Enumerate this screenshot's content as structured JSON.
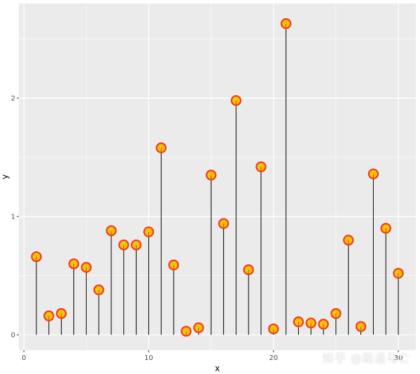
{
  "chart_data": {
    "type": "scatter",
    "style": "lollipop",
    "xlabel": "x",
    "ylabel": "y",
    "xlim": [
      -0.4,
      31.4
    ],
    "ylim": [
      -0.13,
      2.8
    ],
    "x_ticks": [
      0,
      10,
      20,
      30
    ],
    "x_tick_labels": [
      "0",
      "10",
      "20",
      "30"
    ],
    "y_ticks": [
      0,
      1,
      2
    ],
    "y_tick_labels": [
      "0",
      "1",
      "2"
    ],
    "grid": true,
    "x": [
      1,
      2,
      3,
      4,
      5,
      6,
      7,
      8,
      9,
      10,
      11,
      12,
      13,
      14,
      15,
      16,
      17,
      18,
      19,
      20,
      21,
      22,
      23,
      24,
      25,
      26,
      27,
      28,
      29,
      30
    ],
    "y": [
      0.66,
      0.16,
      0.18,
      0.6,
      0.57,
      0.38,
      0.88,
      0.76,
      0.76,
      0.87,
      1.58,
      0.59,
      0.03,
      0.06,
      1.35,
      0.94,
      1.98,
      0.55,
      1.42,
      0.05,
      2.63,
      0.11,
      0.1,
      0.09,
      0.18,
      0.8,
      0.07,
      1.36,
      0.9,
      0.52
    ]
  },
  "colors": {
    "panel_background": "#ebebeb",
    "grid_major": "#ffffff",
    "stem": "#000000",
    "point_fill": "#ffc000",
    "point_stroke": "#ee3b23",
    "tick_text": "#4d4d4d"
  },
  "watermark": "知乎 @路遥马亡"
}
